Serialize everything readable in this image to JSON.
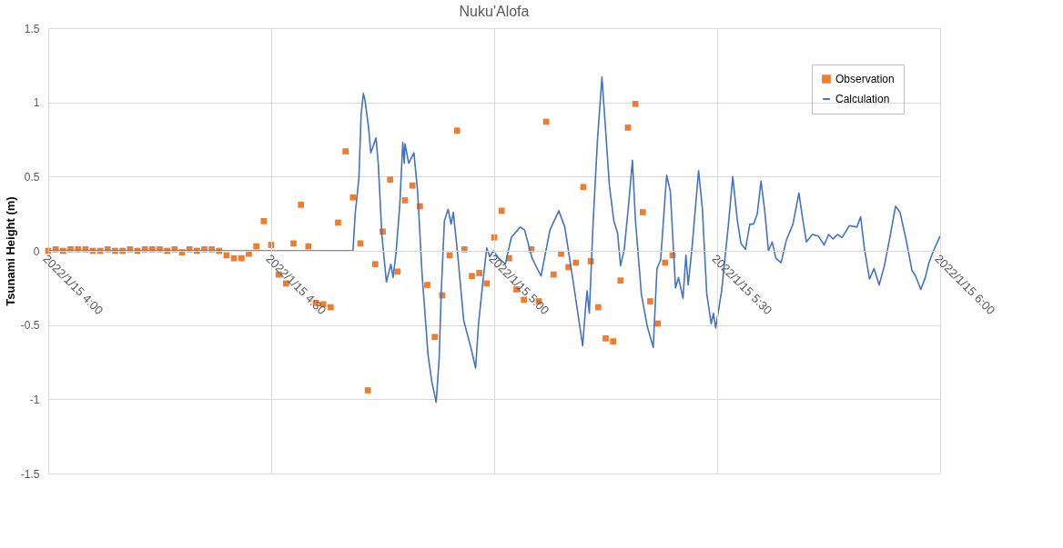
{
  "chart_data": {
    "type": "scatter",
    "title": "Nuku'Alofa",
    "ylabel": "Tsunami Height (m)",
    "xlim": [
      "2022-01-15T04:00",
      "2022-01-15T06:00"
    ],
    "xticks": [
      {
        "value": "2022-01-15T04:00",
        "label": "2022/1/15 4:00"
      },
      {
        "value": "2022-01-15T04:30",
        "label": "2022/1/15 4:30"
      },
      {
        "value": "2022-01-15T05:00",
        "label": "2022/1/15 5:00"
      },
      {
        "value": "2022-01-15T05:30",
        "label": "2022/1/15 5:30"
      },
      {
        "value": "2022-01-15T06:00",
        "label": "2022/1/15 6:00"
      }
    ],
    "ylim": [
      -1.5,
      1.5
    ],
    "yticks": [
      -1.5,
      -1,
      -0.5,
      0,
      0.5,
      1,
      1.5
    ],
    "grid": true,
    "legend": "top right",
    "series": [
      {
        "name": "Observation",
        "marker": "square",
        "color": "#ed7d31",
        "x": [
          "2022-01-15T04:00",
          "2022-01-15T04:01",
          "2022-01-15T04:02",
          "2022-01-15T04:03",
          "2022-01-15T04:04",
          "2022-01-15T04:05",
          "2022-01-15T04:06",
          "2022-01-15T04:07",
          "2022-01-15T04:08",
          "2022-01-15T04:09",
          "2022-01-15T04:10",
          "2022-01-15T04:11",
          "2022-01-15T04:12",
          "2022-01-15T04:13",
          "2022-01-15T04:14",
          "2022-01-15T04:15",
          "2022-01-15T04:16",
          "2022-01-15T04:17",
          "2022-01-15T04:18",
          "2022-01-15T04:19",
          "2022-01-15T04:20",
          "2022-01-15T04:21",
          "2022-01-15T04:22",
          "2022-01-15T04:23",
          "2022-01-15T04:24",
          "2022-01-15T04:25",
          "2022-01-15T04:26",
          "2022-01-15T04:27",
          "2022-01-15T04:28",
          "2022-01-15T04:29",
          "2022-01-15T04:30",
          "2022-01-15T04:31",
          "2022-01-15T04:32",
          "2022-01-15T04:33",
          "2022-01-15T04:34",
          "2022-01-15T04:35",
          "2022-01-15T04:36",
          "2022-01-15T04:37",
          "2022-01-15T04:38",
          "2022-01-15T04:39",
          "2022-01-15T04:40",
          "2022-01-15T04:41",
          "2022-01-15T04:42",
          "2022-01-15T04:43",
          "2022-01-15T04:44",
          "2022-01-15T04:45",
          "2022-01-15T04:46",
          "2022-01-15T04:47",
          "2022-01-15T04:48",
          "2022-01-15T04:49",
          "2022-01-15T04:50",
          "2022-01-15T04:51",
          "2022-01-15T04:52",
          "2022-01-15T04:53",
          "2022-01-15T04:54",
          "2022-01-15T04:55",
          "2022-01-15T04:56",
          "2022-01-15T04:57",
          "2022-01-15T04:58",
          "2022-01-15T04:59",
          "2022-01-15T05:00",
          "2022-01-15T05:01",
          "2022-01-15T05:02",
          "2022-01-15T05:03",
          "2022-01-15T05:04",
          "2022-01-15T05:05",
          "2022-01-15T05:06",
          "2022-01-15T05:07",
          "2022-01-15T05:08",
          "2022-01-15T05:09",
          "2022-01-15T05:10",
          "2022-01-15T05:11",
          "2022-01-15T05:12",
          "2022-01-15T05:13",
          "2022-01-15T05:14",
          "2022-01-15T05:15",
          "2022-01-15T05:16",
          "2022-01-15T05:17",
          "2022-01-15T05:18",
          "2022-01-15T05:19",
          "2022-01-15T05:20",
          "2022-01-15T05:21",
          "2022-01-15T05:22",
          "2022-01-15T05:23",
          "2022-01-15T05:24"
        ],
        "values": [
          0,
          0.01,
          0,
          0.01,
          0.01,
          0.01,
          0,
          0,
          0.01,
          0,
          0,
          0.01,
          0,
          0.01,
          0.01,
          0.01,
          0,
          0.01,
          -0.01,
          0.01,
          0,
          0.01,
          0.01,
          0,
          -0.03,
          -0.05,
          -0.05,
          -0.02,
          0.03,
          0.2,
          0.04,
          -0.16,
          -0.22,
          0.05,
          0.31,
          0.03,
          -0.35,
          -0.36,
          -0.38,
          0.19,
          0.67,
          0.36,
          0.05,
          -0.94,
          -0.09,
          0.13,
          0.48,
          -0.14,
          0.34,
          0.44,
          0.3,
          -0.23,
          -0.58,
          -0.3,
          -0.03,
          0.81,
          0.01,
          -0.17,
          -0.15,
          -0.22,
          0.09,
          0.27,
          -0.05,
          -0.26,
          -0.33,
          0.01,
          -0.34,
          0.87,
          -0.16,
          -0.02,
          -0.11,
          -0.08,
          0.43,
          -0.07,
          -0.38,
          -0.59,
          -0.61,
          -0.2,
          0.83,
          0.99,
          0.26,
          -0.34,
          -0.49,
          -0.08,
          -0.03
        ]
      },
      {
        "name": "Calculation",
        "type": "line",
        "marker": "none",
        "line_style": "solid",
        "color": "#4472c4",
        "x": [
          "2022-01-15T04:00:00",
          "2022-01-15T04:41:00",
          "2022-01-15T04:41:18",
          "2022-01-15T04:41:48",
          "2022-01-15T04:42:06",
          "2022-01-15T04:42:24",
          "2022-01-15T04:42:36",
          "2022-01-15T04:43:06",
          "2022-01-15T04:43:24",
          "2022-01-15T04:44:06",
          "2022-01-15T04:44:24",
          "2022-01-15T04:44:54",
          "2022-01-15T04:45:30",
          "2022-01-15T04:46:06",
          "2022-01-15T04:46:24",
          "2022-01-15T04:46:48",
          "2022-01-15T04:47:18",
          "2022-01-15T04:47:42",
          "2022-01-15T04:47:54",
          "2022-01-15T04:48:00",
          "2022-01-15T04:48:30",
          "2022-01-15T04:49:12",
          "2022-01-15T04:49:42",
          "2022-01-15T04:50:18",
          "2022-01-15T04:51:06",
          "2022-01-15T04:51:36",
          "2022-01-15T04:52:12",
          "2022-01-15T04:52:36",
          "2022-01-15T04:52:54",
          "2022-01-15T04:53:18",
          "2022-01-15T04:53:48",
          "2022-01-15T04:54:12",
          "2022-01-15T04:54:30",
          "2022-01-15T04:55:06",
          "2022-01-15T04:55:54",
          "2022-01-15T04:56:54",
          "2022-01-15T04:57:30",
          "2022-01-15T04:57:54",
          "2022-01-15T04:58:30",
          "2022-01-15T04:59:00",
          "2022-01-15T04:59:24",
          "2022-01-15T04:59:54",
          "2022-01-15T05:00:36",
          "2022-01-15T05:01:30",
          "2022-01-15T05:02:18",
          "2022-01-15T05:03:30",
          "2022-01-15T05:04:06",
          "2022-01-15T05:05:06",
          "2022-01-15T05:06:18",
          "2022-01-15T05:07:30",
          "2022-01-15T05:08:42",
          "2022-01-15T05:09:30",
          "2022-01-15T05:10:42",
          "2022-01-15T05:11:54",
          "2022-01-15T05:12:18",
          "2022-01-15T05:12:30",
          "2022-01-15T05:12:48",
          "2022-01-15T05:13:18",
          "2022-01-15T05:13:54",
          "2022-01-15T05:14:30",
          "2022-01-15T05:14:54",
          "2022-01-15T05:15:30",
          "2022-01-15T05:16:06",
          "2022-01-15T05:16:36",
          "2022-01-15T05:17:00",
          "2022-01-15T05:17:30",
          "2022-01-15T05:18:06",
          "2022-01-15T05:18:36",
          "2022-01-15T05:19:00",
          "2022-01-15T05:19:48",
          "2022-01-15T05:20:36",
          "2022-01-15T05:21:24",
          "2022-01-15T05:21:54",
          "2022-01-15T05:22:24",
          "2022-01-15T05:23:12",
          "2022-01-15T05:23:42",
          "2022-01-15T05:24:24",
          "2022-01-15T05:24:48",
          "2022-01-15T05:25:24",
          "2022-01-15T05:25:48",
          "2022-01-15T05:26:06",
          "2022-01-15T05:26:36",
          "2022-01-15T05:27:30",
          "2022-01-15T05:28:00",
          "2022-01-15T05:28:36",
          "2022-01-15T05:29:12",
          "2022-01-15T05:29:30",
          "2022-01-15T05:29:48",
          "2022-01-15T05:30:36",
          "2022-01-15T05:31:30",
          "2022-01-15T05:32:06",
          "2022-01-15T05:32:42",
          "2022-01-15T05:33:12",
          "2022-01-15T05:33:48",
          "2022-01-15T05:34:24",
          "2022-01-15T05:34:54",
          "2022-01-15T05:35:24",
          "2022-01-15T05:35:54",
          "2022-01-15T05:36:24",
          "2022-01-15T05:36:54",
          "2022-01-15T05:37:24",
          "2022-01-15T05:37:54",
          "2022-01-15T05:38:36",
          "2022-01-15T05:39:18",
          "2022-01-15T05:40:12",
          "2022-01-15T05:41:00",
          "2022-01-15T05:41:24",
          "2022-01-15T05:42:00",
          "2022-01-15T05:42:48",
          "2022-01-15T05:43:36",
          "2022-01-15T05:44:24",
          "2022-01-15T05:45:00",
          "2022-01-15T05:45:36",
          "2022-01-15T05:46:12",
          "2022-01-15T05:46:48",
          "2022-01-15T05:47:48",
          "2022-01-15T05:48:48",
          "2022-01-15T05:49:18",
          "2022-01-15T05:49:48",
          "2022-01-15T05:50:30",
          "2022-01-15T05:51:06",
          "2022-01-15T05:51:48",
          "2022-01-15T05:52:30",
          "2022-01-15T05:53:12",
          "2022-01-15T05:54:00",
          "2022-01-15T05:54:36",
          "2022-01-15T05:55:24",
          "2022-01-15T05:56:12",
          "2022-01-15T05:56:42",
          "2022-01-15T05:57:24",
          "2022-01-15T05:58:00",
          "2022-01-15T05:58:30",
          "2022-01-15T05:59:06",
          "2022-01-15T06:00:00"
        ],
        "values": [
          0,
          0,
          0.25,
          0.49,
          0.92,
          1.06,
          1.02,
          0.83,
          0.66,
          0.76,
          0.59,
          0.1,
          -0.21,
          -0.09,
          -0.18,
          -0.01,
          0.31,
          0.73,
          0.59,
          0.72,
          0.59,
          0.66,
          0.4,
          -0.16,
          -0.7,
          -0.88,
          -1.02,
          -0.72,
          -0.25,
          0.2,
          0.28,
          0.18,
          0.26,
          -0.03,
          -0.47,
          -0.66,
          -0.79,
          -0.49,
          -0.2,
          0.02,
          -0.04,
          0,
          -0.05,
          -0.09,
          0.09,
          0.16,
          0.14,
          -0.05,
          -0.17,
          0.14,
          0.27,
          0.16,
          -0.23,
          -0.64,
          -0.38,
          -0.27,
          -0.42,
          0.18,
          0.75,
          1.17,
          0.88,
          0.44,
          0.2,
          0.12,
          -0.1,
          0.01,
          0.32,
          0.61,
          0.21,
          -0.29,
          -0.51,
          -0.65,
          -0.12,
          -0.06,
          0.51,
          0.4,
          -0.25,
          -0.18,
          -0.32,
          -0.03,
          -0.23,
          0.01,
          0.54,
          0.29,
          -0.29,
          -0.49,
          -0.42,
          -0.52,
          -0.27,
          0.17,
          0.5,
          0.21,
          0.05,
          0.01,
          0.18,
          0.18,
          0.25,
          0.47,
          0.27,
          0,
          0.06,
          -0.05,
          -0.08,
          0.07,
          0.18,
          0.39,
          0.25,
          0.06,
          0.11,
          0.1,
          0.04,
          0.11,
          0.08,
          0.11,
          0.09,
          0.17,
          0.16,
          0.23,
          0.02,
          -0.19,
          -0.12,
          -0.23,
          -0.1,
          0.08,
          0.3,
          0.26,
          0.08,
          -0.13,
          -0.17,
          -0.26,
          -0.18,
          -0.08,
          0,
          0.1
        ]
      }
    ]
  }
}
